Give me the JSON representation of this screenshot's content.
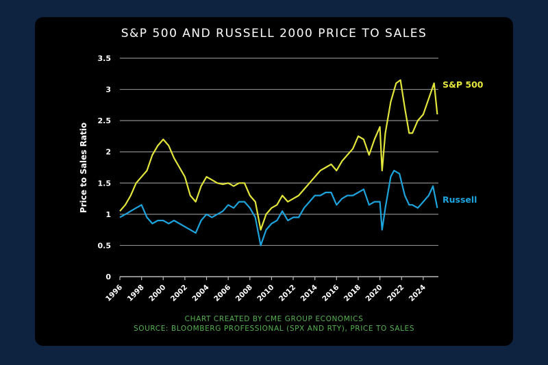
{
  "chart_data": {
    "type": "line",
    "title": "S&P 500 AND RUSSELL 2000 PRICE TO SALES",
    "xlabel": "",
    "ylabel": "Price to Sales Ratio",
    "xlim": [
      1996,
      2025.4
    ],
    "ylim": [
      0,
      3.5
    ],
    "yticks": [
      "0",
      "0.5",
      "1",
      "1.5",
      "2",
      "2.5",
      "3",
      "3.5"
    ],
    "xticks": [
      "1996",
      "1998",
      "2000",
      "2002",
      "2004",
      "2006",
      "2008",
      "2010",
      "2012",
      "2014",
      "2016",
      "2018",
      "2020",
      "2022",
      "2024"
    ],
    "grid": true,
    "legend": "direct labels at right end of lines",
    "series": [
      {
        "name": "S&P 500",
        "color": "#e3e63a",
        "x": [
          1996,
          1996.5,
          1997,
          1997.5,
          1998,
          1998.5,
          1999,
          1999.5,
          2000,
          2000.5,
          2001,
          2001.5,
          2002,
          2002.5,
          2003,
          2003.5,
          2004,
          2004.5,
          2005,
          2005.5,
          2006,
          2006.5,
          2007,
          2007.5,
          2008,
          2008.5,
          2009,
          2009.5,
          2010,
          2010.5,
          2011,
          2011.5,
          2012,
          2012.5,
          2013,
          2013.5,
          2014,
          2014.5,
          2015,
          2015.5,
          2016,
          2016.5,
          2017,
          2017.5,
          2018,
          2018.5,
          2019,
          2019.5,
          2020,
          2020.2,
          2020.5,
          2021,
          2021.5,
          2021.9,
          2022.3,
          2022.7,
          2023,
          2023.5,
          2024,
          2024.5,
          2025,
          2025.3
        ],
        "y": [
          1.05,
          1.15,
          1.3,
          1.5,
          1.6,
          1.7,
          1.95,
          2.1,
          2.2,
          2.1,
          1.9,
          1.75,
          1.6,
          1.3,
          1.2,
          1.45,
          1.6,
          1.55,
          1.5,
          1.48,
          1.5,
          1.45,
          1.5,
          1.5,
          1.3,
          1.2,
          0.75,
          1.0,
          1.1,
          1.15,
          1.3,
          1.2,
          1.25,
          1.3,
          1.4,
          1.5,
          1.6,
          1.7,
          1.75,
          1.8,
          1.7,
          1.85,
          1.95,
          2.05,
          2.25,
          2.2,
          1.95,
          2.2,
          2.4,
          1.7,
          2.3,
          2.8,
          3.1,
          3.15,
          2.7,
          2.3,
          2.3,
          2.5,
          2.6,
          2.85,
          3.1,
          2.6
        ]
      },
      {
        "name": "Russell",
        "color": "#1ea4dd",
        "x": [
          1996,
          1996.5,
          1997,
          1997.5,
          1998,
          1998.5,
          1999,
          1999.5,
          2000,
          2000.5,
          2001,
          2001.5,
          2002,
          2002.5,
          2003,
          2003.5,
          2004,
          2004.5,
          2005,
          2005.5,
          2006,
          2006.5,
          2007,
          2007.5,
          2008,
          2008.5,
          2009,
          2009.5,
          2010,
          2010.5,
          2011,
          2011.5,
          2012,
          2012.5,
          2013,
          2013.5,
          2014,
          2014.5,
          2015,
          2015.5,
          2016,
          2016.5,
          2017,
          2017.5,
          2018,
          2018.5,
          2019,
          2019.5,
          2020,
          2020.2,
          2020.5,
          2021,
          2021.3,
          2021.8,
          2022.3,
          2022.7,
          2023,
          2023.5,
          2024,
          2024.5,
          2024.9,
          2025.3
        ],
        "y": [
          0.95,
          1.0,
          1.05,
          1.1,
          1.15,
          0.95,
          0.85,
          0.9,
          0.9,
          0.85,
          0.9,
          0.85,
          0.8,
          0.75,
          0.7,
          0.9,
          1.0,
          0.95,
          1.0,
          1.05,
          1.15,
          1.1,
          1.2,
          1.2,
          1.1,
          0.95,
          0.5,
          0.75,
          0.85,
          0.9,
          1.05,
          0.9,
          0.95,
          0.95,
          1.1,
          1.2,
          1.3,
          1.3,
          1.35,
          1.35,
          1.15,
          1.25,
          1.3,
          1.3,
          1.35,
          1.4,
          1.15,
          1.2,
          1.2,
          0.75,
          1.1,
          1.6,
          1.7,
          1.65,
          1.3,
          1.15,
          1.15,
          1.1,
          1.2,
          1.3,
          1.45,
          1.1
        ]
      }
    ]
  },
  "footer": {
    "credit": "CHART CREATED BY CME GROUP ECONOMICS",
    "source": "SOURCE: BLOOMBERG PROFESSIONAL (SPX AND RTY), PRICE TO SALES"
  }
}
